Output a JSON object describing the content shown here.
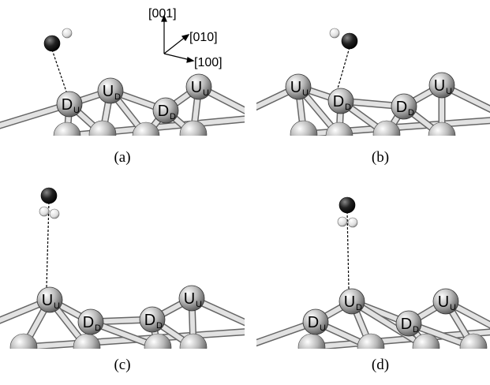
{
  "axes": {
    "z": "[001]",
    "y": "[010]",
    "x": "[100]"
  },
  "panels": [
    {
      "label": "(a)",
      "atoms": [
        {
          "main": "D",
          "sub": "U"
        },
        {
          "main": "U",
          "sub": "D"
        },
        {
          "main": "D",
          "sub": "D"
        },
        {
          "main": "U",
          "sub": "U"
        }
      ]
    },
    {
      "label": "(b)",
      "atoms": [
        {
          "main": "U",
          "sub": "U"
        },
        {
          "main": "D",
          "sub": "D"
        },
        {
          "main": "D",
          "sub": "D"
        },
        {
          "main": "U",
          "sub": "U"
        }
      ]
    },
    {
      "label": "(c)",
      "atoms": [
        {
          "main": "U",
          "sub": "U"
        },
        {
          "main": "D",
          "sub": "D"
        },
        {
          "main": "D",
          "sub": "D"
        },
        {
          "main": "U",
          "sub": "U"
        }
      ]
    },
    {
      "label": "(d)",
      "atoms": [
        {
          "main": "D",
          "sub": "U"
        },
        {
          "main": "U",
          "sub": "D"
        },
        {
          "main": "D",
          "sub": "D"
        },
        {
          "main": "U",
          "sub": "U"
        }
      ]
    }
  ]
}
